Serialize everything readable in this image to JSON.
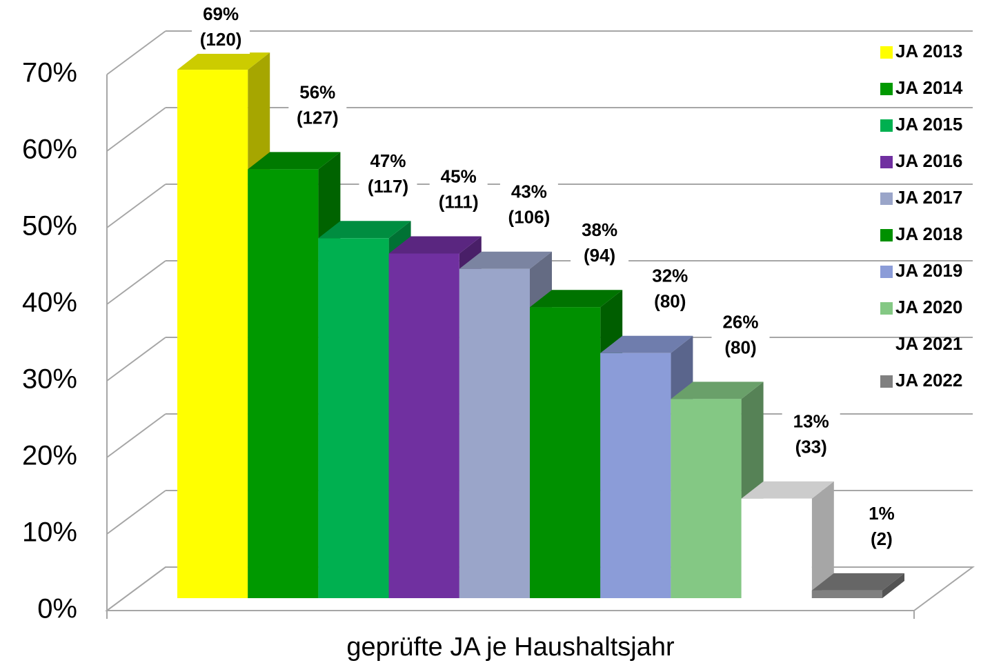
{
  "chart_data": {
    "type": "bar3d",
    "x_label": "geprüfte JA je Haushaltsjahr",
    "ylim": [
      0,
      70
    ],
    "yticks": [
      {
        "value": 0,
        "label": "0%"
      },
      {
        "value": 10,
        "label": "10%"
      },
      {
        "value": 20,
        "label": "20%"
      },
      {
        "value": 30,
        "label": "30%"
      },
      {
        "value": 40,
        "label": "40%"
      },
      {
        "value": 50,
        "label": "50%"
      },
      {
        "value": 60,
        "label": "60%"
      },
      {
        "value": 70,
        "label": "70%"
      }
    ],
    "grid": true,
    "legend": "right",
    "series": [
      {
        "name": "JA 2013",
        "color": "#ffff00",
        "values": [
          69
        ],
        "value_labels": [
          "69%"
        ],
        "count_labels": [
          "(120)"
        ]
      },
      {
        "name": "JA 2014",
        "color": "#009900",
        "values": [
          56
        ],
        "value_labels": [
          "56%"
        ],
        "count_labels": [
          "(127)"
        ]
      },
      {
        "name": "JA 2015",
        "color": "#00b050",
        "values": [
          47
        ],
        "value_labels": [
          "47%"
        ],
        "count_labels": [
          "(117)"
        ]
      },
      {
        "name": "JA 2016",
        "color": "#7030a0",
        "values": [
          45
        ],
        "value_labels": [
          "45%"
        ],
        "count_labels": [
          "(111)"
        ]
      },
      {
        "name": "JA 2017",
        "color": "#9aa5c9",
        "values": [
          43
        ],
        "value_labels": [
          "43%"
        ],
        "count_labels": [
          "(106)"
        ]
      },
      {
        "name": "JA 2018",
        "color": "#009000",
        "values": [
          38
        ],
        "value_labels": [
          "38%"
        ],
        "count_labels": [
          "(94)"
        ]
      },
      {
        "name": "JA 2019",
        "color": "#8b9cd8",
        "values": [
          32
        ],
        "value_labels": [
          "32%"
        ],
        "count_labels": [
          "(80)"
        ]
      },
      {
        "name": "JA 2020",
        "color": "#84c884",
        "values": [
          26
        ],
        "value_labels": [
          "26%"
        ],
        "count_labels": [
          "(80)"
        ]
      },
      {
        "name": "JA 2021",
        "color": "#ffffff",
        "values": [
          13
        ],
        "value_labels": [
          "13%"
        ],
        "count_labels": [
          "(33)"
        ]
      },
      {
        "name": "JA 2022",
        "color": "#808080",
        "values": [
          1
        ],
        "value_labels": [
          "1%"
        ],
        "count_labels": [
          "(2)"
        ]
      }
    ]
  }
}
